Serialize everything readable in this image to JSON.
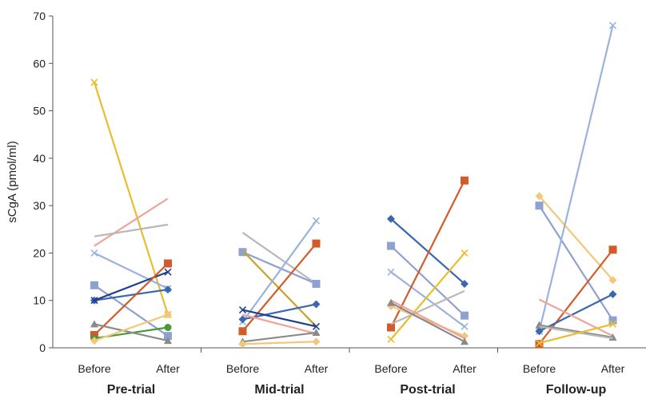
{
  "chart_data": {
    "type": "line",
    "ylabel": "sCgA (pmol/ml)",
    "ylim": [
      0,
      70
    ],
    "yticks": [
      0,
      10,
      20,
      30,
      40,
      50,
      60,
      70
    ],
    "grid": false,
    "legend": "none",
    "point_labels": [
      "Before",
      "After"
    ],
    "groups": [
      {
        "name": "Pre-trial",
        "lines": [
          {
            "color": "#E8BE2C",
            "marker": "x",
            "values": [
              56.0,
              7.0
            ]
          },
          {
            "color": "#EFA39A",
            "marker": "none",
            "values": [
              21.5,
              31.5
            ]
          },
          {
            "color": "#B8B8B8",
            "marker": "none",
            "values": [
              23.5,
              26.0
            ]
          },
          {
            "color": "#9AB3DE",
            "marker": "x",
            "values": [
              20.0,
              12.5
            ]
          },
          {
            "color": "#8FA1D2",
            "marker": "square",
            "values": [
              13.2,
              2.5
            ]
          },
          {
            "color": "#3B66B0",
            "marker": "diamond",
            "values": [
              10.0,
              12.3
            ]
          },
          {
            "color": "#1F3F8F",
            "marker": "x",
            "values": [
              10.0,
              16.0
            ]
          },
          {
            "color": "#D35A2A",
            "marker": "square",
            "values": [
              2.7,
              17.8
            ]
          },
          {
            "color": "#4A9A3A",
            "marker": "circle",
            "values": [
              2.0,
              4.3
            ]
          },
          {
            "color": "#8A8A8A",
            "marker": "triangle",
            "values": [
              5.0,
              1.5
            ]
          },
          {
            "color": "#F2C77A",
            "marker": "diamond",
            "values": [
              1.5,
              7.0
            ]
          }
        ]
      },
      {
        "name": "Mid-trial",
        "lines": [
          {
            "color": "#B8B8B8",
            "marker": "none",
            "values": [
              24.3,
              13.5
            ]
          },
          {
            "color": "#8FA1D2",
            "marker": "square",
            "values": [
              20.2,
              13.5
            ]
          },
          {
            "color": "#C9A227",
            "marker": "none",
            "values": [
              20.5,
              4.5
            ]
          },
          {
            "color": "#9AB3DE",
            "marker": "x",
            "values": [
              5.5,
              26.8
            ]
          },
          {
            "color": "#D35A2A",
            "marker": "square",
            "values": [
              3.5,
              22.0
            ]
          },
          {
            "color": "#3B66B0",
            "marker": "diamond",
            "values": [
              6.0,
              9.2
            ]
          },
          {
            "color": "#1F3F8F",
            "marker": "x",
            "values": [
              8.0,
              4.5
            ]
          },
          {
            "color": "#EFA39A",
            "marker": "none",
            "values": [
              7.0,
              3.0
            ]
          },
          {
            "color": "#8A8A8A",
            "marker": "triangle",
            "values": [
              1.3,
              3.2
            ]
          },
          {
            "color": "#F2C77A",
            "marker": "diamond",
            "values": [
              0.8,
              1.3
            ]
          }
        ]
      },
      {
        "name": "Post-trial",
        "lines": [
          {
            "color": "#3B66B0",
            "marker": "diamond",
            "values": [
              27.2,
              13.5
            ]
          },
          {
            "color": "#8FA1D2",
            "marker": "square",
            "values": [
              21.5,
              6.8
            ]
          },
          {
            "color": "#9AB3DE",
            "marker": "x",
            "values": [
              16.0,
              4.5
            ]
          },
          {
            "color": "#D35A2A",
            "marker": "square",
            "values": [
              4.3,
              35.3
            ]
          },
          {
            "color": "#E8BE2C",
            "marker": "x",
            "values": [
              1.8,
              20.0
            ]
          },
          {
            "color": "#B8B8B8",
            "marker": "none",
            "values": [
              5.0,
              12.0
            ]
          },
          {
            "color": "#F2C77A",
            "marker": "diamond",
            "values": [
              8.8,
              2.5
            ]
          },
          {
            "color": "#EFA39A",
            "marker": "none",
            "values": [
              10.0,
              2.0
            ]
          },
          {
            "color": "#8A8A8A",
            "marker": "triangle",
            "values": [
              9.5,
              1.3
            ]
          }
        ]
      },
      {
        "name": "Follow-up",
        "lines": [
          {
            "color": "#F2C77A",
            "marker": "diamond",
            "values": [
              32.0,
              14.3
            ]
          },
          {
            "color": "#8FA1D2",
            "marker": "square",
            "values": [
              30.0,
              5.8
            ]
          },
          {
            "color": "#9AB3DE",
            "marker": "x",
            "values": [
              3.5,
              68.0
            ]
          },
          {
            "color": "#D35A2A",
            "marker": "square",
            "values": [
              0.8,
              20.7
            ]
          },
          {
            "color": "#3B66B0",
            "marker": "diamond",
            "values": [
              3.5,
              11.3
            ]
          },
          {
            "color": "#EFA39A",
            "marker": "none",
            "values": [
              10.2,
              2.5
            ]
          },
          {
            "color": "#8A8A8A",
            "marker": "triangle",
            "values": [
              4.8,
              2.2
            ]
          },
          {
            "color": "#B8B8B8",
            "marker": "none",
            "values": [
              4.5,
              2.0
            ]
          },
          {
            "color": "#E8BE2C",
            "marker": "x",
            "values": [
              1.0,
              5.0
            ]
          }
        ]
      }
    ]
  }
}
